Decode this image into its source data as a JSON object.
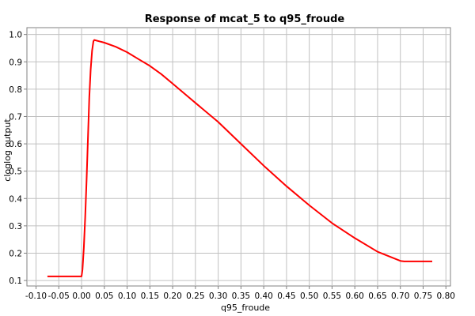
{
  "chart_data": {
    "type": "line",
    "title": "Response of mcat_5 to q95_froude",
    "xlabel": "q95_froude",
    "ylabel": "cloglog output",
    "xlim": [
      -0.12,
      0.81
    ],
    "ylim": [
      0.08,
      1.025
    ],
    "xticks": [
      -0.1,
      -0.05,
      0.0,
      0.05,
      0.1,
      0.15,
      0.2,
      0.25,
      0.3,
      0.35,
      0.4,
      0.45,
      0.5,
      0.55,
      0.6,
      0.65,
      0.7,
      0.75,
      0.8
    ],
    "xtick_labels": [
      "-0.10",
      "-0.05",
      "0.00",
      "0.05",
      "0.10",
      "0.15",
      "0.20",
      "0.25",
      "0.30",
      "0.35",
      "0.40",
      "0.45",
      "0.50",
      "0.55",
      "0.60",
      "0.65",
      "0.70",
      "0.75",
      "0.80"
    ],
    "yticks": [
      0.1,
      0.2,
      0.3,
      0.4,
      0.5,
      0.6,
      0.7,
      0.8,
      0.9,
      1.0
    ],
    "ytick_labels": [
      "0.1",
      "0.2",
      "0.3",
      "0.4",
      "0.5",
      "0.6",
      "0.7",
      "0.8",
      "0.9",
      "1.0"
    ],
    "grid": true,
    "series": [
      {
        "color": "#ff0000",
        "x": [
          -0.075,
          -0.05,
          -0.025,
          0.0,
          0.002,
          0.005,
          0.008,
          0.011,
          0.014,
          0.017,
          0.02,
          0.023,
          0.026,
          0.028,
          0.05,
          0.075,
          0.1,
          0.125,
          0.15,
          0.175,
          0.2,
          0.25,
          0.3,
          0.35,
          0.4,
          0.45,
          0.5,
          0.55,
          0.6,
          0.65,
          0.7,
          0.708,
          0.74,
          0.77
        ],
        "y": [
          0.115,
          0.115,
          0.115,
          0.115,
          0.14,
          0.22,
          0.33,
          0.47,
          0.62,
          0.77,
          0.87,
          0.94,
          0.975,
          0.98,
          0.97,
          0.955,
          0.935,
          0.91,
          0.885,
          0.855,
          0.82,
          0.75,
          0.68,
          0.6,
          0.52,
          0.445,
          0.375,
          0.31,
          0.255,
          0.205,
          0.172,
          0.17,
          0.17,
          0.17
        ]
      }
    ]
  }
}
